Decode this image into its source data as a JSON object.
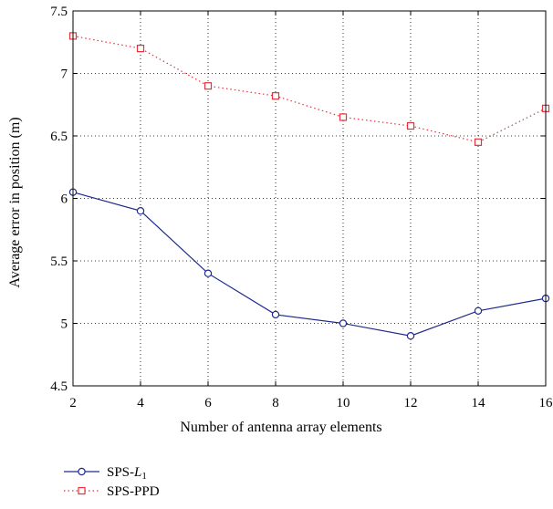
{
  "chart_data": {
    "type": "line",
    "title": "",
    "xlabel": "Number of antenna array elements",
    "ylabel": "Average error in position (m)",
    "x": [
      2,
      4,
      6,
      8,
      10,
      12,
      14,
      16
    ],
    "xlim": [
      2,
      16
    ],
    "ylim": [
      4.5,
      7.5
    ],
    "xticks": [
      "2",
      "4",
      "6",
      "8",
      "10",
      "12",
      "14",
      "16"
    ],
    "yticks": [
      "4.5",
      "5",
      "5.5",
      "6",
      "6.5",
      "7",
      "7.5"
    ],
    "grid": true,
    "legend_position": "bottom-left",
    "series": [
      {
        "name": "SPS-L1",
        "name_main": "SPS-",
        "name_italic": "L",
        "name_sub": "1",
        "color": "#1f2a8c",
        "linestyle": "solid",
        "marker": "circle",
        "values": [
          6.05,
          5.9,
          5.4,
          5.07,
          5.0,
          4.9,
          5.1,
          5.2
        ]
      },
      {
        "name": "SPS-PPD",
        "color": "#e8313a",
        "linestyle": "dotted",
        "marker": "square",
        "values": [
          7.3,
          7.2,
          6.9,
          6.82,
          6.65,
          6.58,
          6.45,
          6.72
        ]
      }
    ]
  }
}
